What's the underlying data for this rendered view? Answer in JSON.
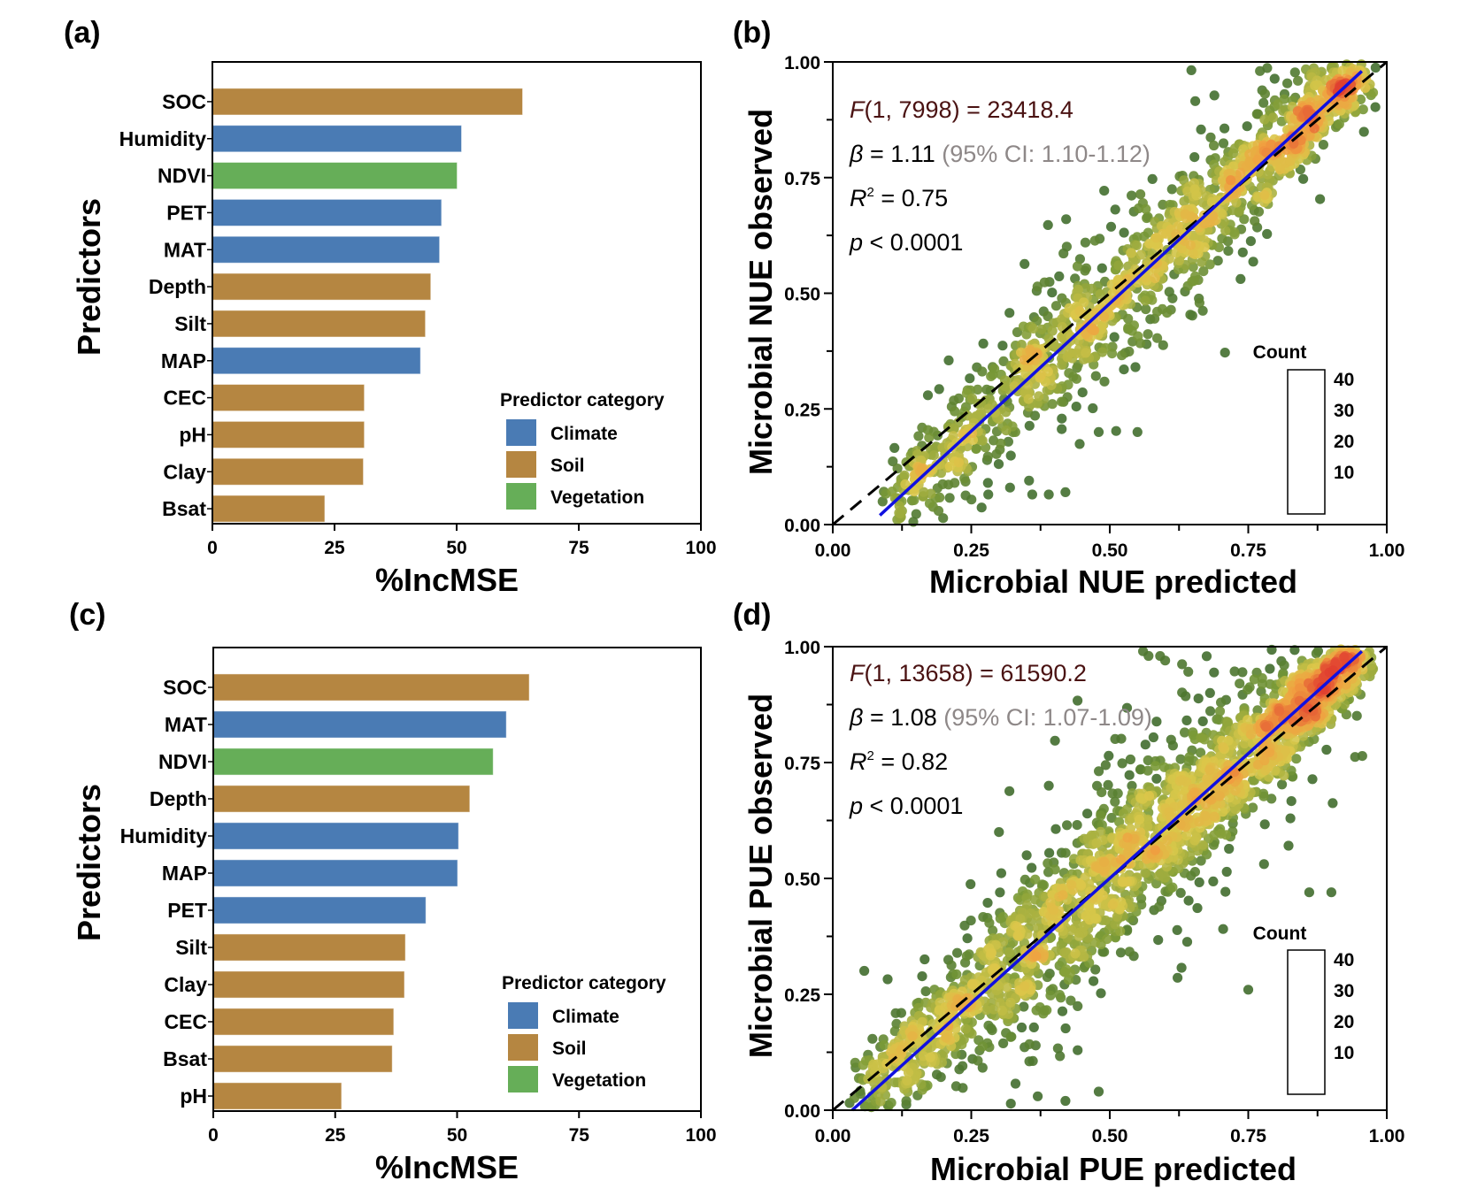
{
  "chart_data": [
    {
      "panel": "(a)",
      "type": "bar",
      "orientation": "horizontal",
      "xlabel": "%IncMSE",
      "ylabel": "Predictors",
      "xlim": [
        0,
        100
      ],
      "xticks": [
        "0",
        "25",
        "50",
        "75",
        "100"
      ],
      "categories": [
        "SOC",
        "Humidity",
        "NDVI",
        "PET",
        "MAT",
        "Depth",
        "Silt",
        "MAP",
        "CEC",
        "pH",
        "Clay",
        "Bsat"
      ],
      "values": [
        63.5,
        51.0,
        50.1,
        46.9,
        46.5,
        44.7,
        43.6,
        42.6,
        31.1,
        31.1,
        30.9,
        23.0
      ],
      "groups": [
        "Soil",
        "Climate",
        "Vegetation",
        "Climate",
        "Climate",
        "Soil",
        "Soil",
        "Climate",
        "Soil",
        "Soil",
        "Soil",
        "Soil"
      ],
      "legend": {
        "title": "Predictor category",
        "placement": "bottom-right",
        "items": [
          {
            "label": "Climate",
            "color": "#4a7bb4"
          },
          {
            "label": "Soil",
            "color": "#b58641"
          },
          {
            "label": "Vegetation",
            "color": "#66ae58"
          }
        ]
      }
    },
    {
      "panel": "(b)",
      "type": "scatter",
      "xlabel": "Microbial NUE predicted",
      "ylabel": "Microbial NUE observed",
      "xlim": [
        0,
        1
      ],
      "ylim": [
        0,
        1
      ],
      "xticks": [
        "0.00",
        "0.25",
        "0.50",
        "0.75",
        "1.00"
      ],
      "yticks": [
        "0.00",
        "0.25",
        "0.50",
        "0.75",
        "1.00"
      ],
      "stats": {
        "f_label": "F",
        "f_rest": "(1, 7998) = 23418.4",
        "beta_label": "β",
        "beta_rest": " = 1.11 ",
        "ci": "(95% CI: 1.10-1.12)",
        "r2_label": "R",
        "r2_sup": "2",
        "r2_rest": " = 0.75",
        "p_label": "p",
        "p_rest": " < 0.0001"
      },
      "fit_line": {
        "x": [
          0.085,
          0.955
        ],
        "y": [
          0.02,
          0.98
        ],
        "color": "#1010e0"
      },
      "identity_line": {
        "x": [
          0,
          1
        ],
        "y": [
          0,
          1
        ],
        "style": "dashed",
        "color": "#000000"
      },
      "points": {
        "n_rendered": 1400,
        "x_range": [
          0.08,
          0.96
        ],
        "slope": 1.11,
        "noise_sd": 0.045,
        "seed": 11,
        "outliers": [
          [
            0.36,
            0.065
          ],
          [
            0.39,
            0.065
          ],
          [
            0.42,
            0.07
          ],
          [
            0.32,
            0.08
          ],
          [
            0.28,
            0.09
          ],
          [
            0.22,
            0.09
          ],
          [
            0.55,
            0.2
          ],
          [
            0.48,
            0.2
          ],
          [
            0.44,
            0.37
          ],
          [
            0.12,
            0.05
          ],
          [
            0.09,
            0.05
          ],
          [
            0.26,
            0.34
          ],
          [
            0.86,
            0.97
          ],
          [
            0.88,
            0.97
          ]
        ]
      },
      "colorbar": {
        "title": "Count",
        "ticks": [
          "40",
          "30",
          "20",
          "10"
        ],
        "colors": [
          "#2f5f2c",
          "#7a9a36",
          "#d9c84a",
          "#f0a040",
          "#e04030"
        ]
      }
    },
    {
      "panel": "(c)",
      "type": "bar",
      "orientation": "horizontal",
      "xlabel": "%IncMSE",
      "ylabel": "Predictors",
      "xlim": [
        0,
        100
      ],
      "xticks": [
        "0",
        "25",
        "50",
        "75",
        "100"
      ],
      "categories": [
        "SOC",
        "MAT",
        "NDVI",
        "Depth",
        "Humidity",
        "MAP",
        "PET",
        "Silt",
        "Clay",
        "CEC",
        "Bsat",
        "pH"
      ],
      "values": [
        64.8,
        60.1,
        57.4,
        52.6,
        50.3,
        50.1,
        43.6,
        39.4,
        39.2,
        37.0,
        36.7,
        26.3
      ],
      "groups": [
        "Soil",
        "Climate",
        "Vegetation",
        "Soil",
        "Climate",
        "Climate",
        "Climate",
        "Soil",
        "Soil",
        "Soil",
        "Soil",
        "Soil"
      ],
      "legend": {
        "title": "Predictor category",
        "placement": "bottom-right",
        "items": [
          {
            "label": "Climate",
            "color": "#4a7bb4"
          },
          {
            "label": "Soil",
            "color": "#b58641"
          },
          {
            "label": "Vegetation",
            "color": "#66ae58"
          }
        ]
      }
    },
    {
      "panel": "(d)",
      "type": "scatter",
      "xlabel": "Microbial PUE predicted",
      "ylabel": "Microbial PUE observed",
      "xlim": [
        0,
        1
      ],
      "ylim": [
        0,
        1
      ],
      "xticks": [
        "0.00",
        "0.25",
        "0.50",
        "0.75",
        "1.00"
      ],
      "yticks": [
        "0.00",
        "0.25",
        "0.50",
        "0.75",
        "1.00"
      ],
      "stats": {
        "f_label": "F",
        "f_rest": "(1, 13658) = 61590.2",
        "beta_label": "β",
        "beta_rest": " = 1.08 ",
        "ci": "(95% CI: 1.07-1.09)",
        "r2_label": "R",
        "r2_sup": "2",
        "r2_rest": " = 0.82",
        "p_label": "p",
        "p_rest": " < 0.0001"
      },
      "fit_line": {
        "x": [
          0.035,
          0.955
        ],
        "y": [
          0.0,
          0.99
        ],
        "color": "#1010e0"
      },
      "identity_line": {
        "x": [
          0,
          1
        ],
        "y": [
          0,
          1
        ],
        "style": "dashed",
        "color": "#000000"
      },
      "points": {
        "n_rendered": 2200,
        "x_range": [
          0.03,
          0.96
        ],
        "slope": 1.08,
        "noise_sd": 0.055,
        "seed": 23,
        "outliers": [
          [
            0.42,
            0.02
          ],
          [
            0.37,
            0.03
          ],
          [
            0.48,
            0.04
          ],
          [
            0.52,
            0.34
          ],
          [
            0.75,
            0.26
          ],
          [
            0.9,
            0.47
          ],
          [
            0.86,
            0.47
          ],
          [
            0.3,
            0.6
          ],
          [
            0.56,
            0.99
          ],
          [
            0.57,
            0.98
          ],
          [
            0.6,
            0.97
          ],
          [
            0.35,
            0.55
          ],
          [
            0.39,
            0.7
          ]
        ]
      },
      "colorbar": {
        "title": "Count",
        "ticks": [
          "40",
          "30",
          "20",
          "10"
        ],
        "colors": [
          "#2f5f2c",
          "#7a9a36",
          "#d9c84a",
          "#f0a040",
          "#e04030"
        ]
      }
    }
  ]
}
